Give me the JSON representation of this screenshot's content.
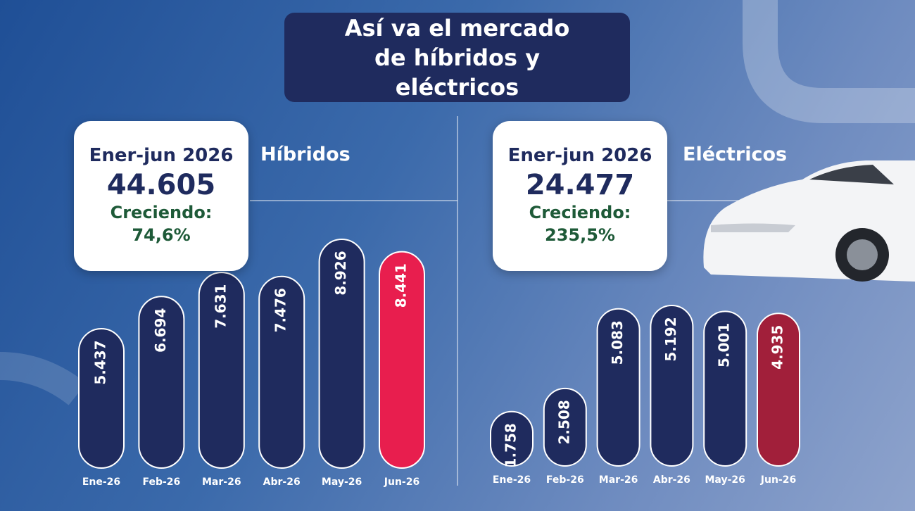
{
  "header": {
    "title": "Así va el mercado de híbridos y eléctricos"
  },
  "chart_data": [
    {
      "type": "bar",
      "title": "Híbridos",
      "summary": {
        "period": "Ener-jun 2026",
        "total": "44.605",
        "growth_label": "Creciendo:",
        "growth": "74,6%"
      },
      "categories": [
        "Ene-26",
        "Feb-26",
        "Mar-26",
        "Abr-26",
        "May-26",
        "Jun-26"
      ],
      "values": [
        5437,
        6694,
        7631,
        7476,
        8926,
        8441
      ],
      "value_labels": [
        "5.437",
        "6.694",
        "7.631",
        "7.476",
        "8.926",
        "8.441"
      ],
      "colors": [
        "#1f2b5e",
        "#1f2b5e",
        "#1f2b5e",
        "#1f2b5e",
        "#1f2b5e",
        "#e81e4e"
      ]
    },
    {
      "type": "bar",
      "title": "Eléctricos",
      "summary": {
        "period": "Ener-jun 2026",
        "total": "24.477",
        "growth_label": "Creciendo:",
        "growth": "235,5%"
      },
      "categories": [
        "Ene-26",
        "Feb-26",
        "Mar-26",
        "Abr-26",
        "May-26",
        "Jun-26"
      ],
      "values": [
        1758,
        2508,
        5083,
        5192,
        5001,
        4935
      ],
      "value_labels": [
        "1.758",
        "2.508",
        "5.083",
        "5.192",
        "5.001",
        "4.935"
      ],
      "colors": [
        "#1f2b5e",
        "#1f2b5e",
        "#1f2b5e",
        "#1f2b5e",
        "#1f2b5e",
        "#a11f3a"
      ]
    }
  ]
}
